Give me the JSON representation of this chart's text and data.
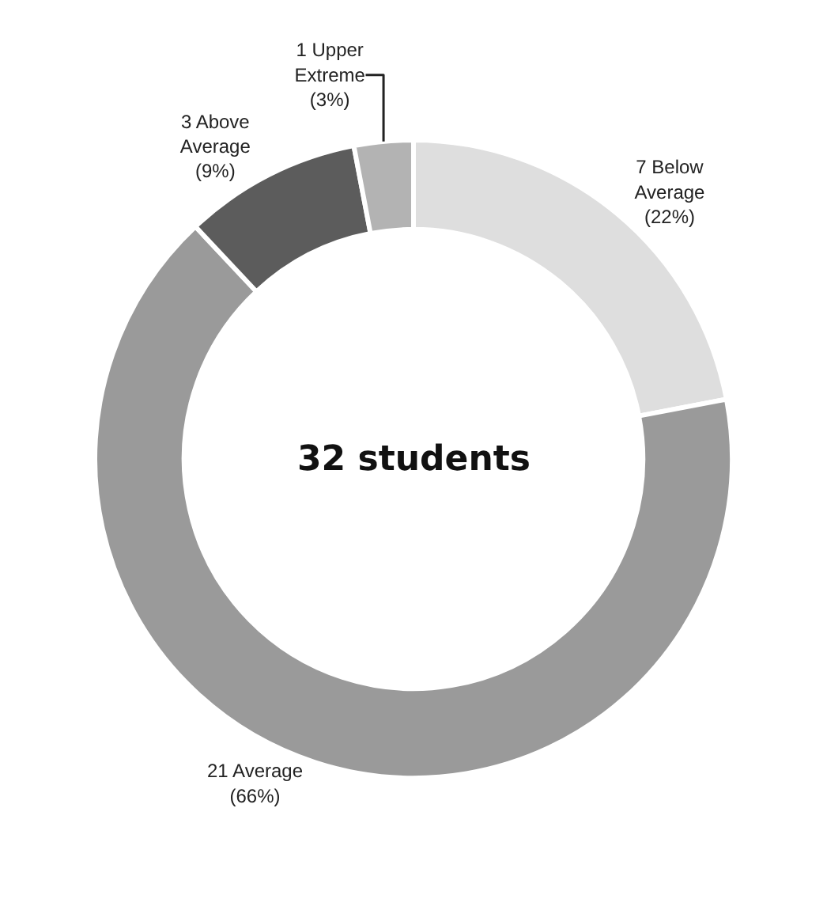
{
  "chart_data": {
    "type": "donut",
    "categories": [
      "7 Below Average",
      "21 Average",
      "3 Above Average",
      "1 Upper Extreme"
    ],
    "values": [
      22,
      66,
      9,
      3
    ],
    "value_labels": [
      "(22%)",
      "(66%)",
      "(9%)",
      "(3%)"
    ],
    "colors": [
      "#dedede",
      "#9a9a9a",
      "#5c5c5c",
      "#b3b3b3"
    ],
    "annotations": [
      "32 students"
    ],
    "legend": false
  }
}
